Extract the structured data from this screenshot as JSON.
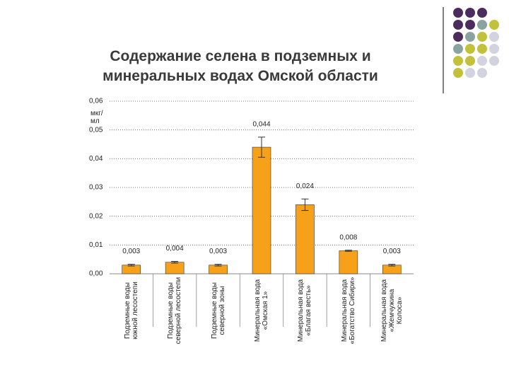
{
  "chart_data": {
    "type": "bar",
    "title": "Содержание селена в подземных и минеральных водах Омской области",
    "y_label": "мкг/мл",
    "categories": [
      "Подземные воды южной лесостепи",
      "Подземные воды северной лесостепи",
      "Подземные воды северной зоны",
      "Минеральная вода «Омская 1»",
      "Минеральная вода «Благая весть»",
      "Минеральная вода «Богатство Сибири»",
      "Минеральная вода «Жемчужина Колоса»"
    ],
    "values": [
      0.003,
      0.004,
      0.003,
      0.044,
      0.024,
      0.008,
      0.003
    ],
    "value_labels": [
      "0,003",
      "0,004",
      "0,003",
      "0,044",
      "0,024",
      "0,008",
      "0,003"
    ],
    "errors": [
      0.0003,
      0.0003,
      0.0003,
      0.0035,
      0.002,
      0.0002,
      0.0003
    ],
    "color": "#f7a11a",
    "ylim": [
      0,
      0.06
    ],
    "yticks": [
      {
        "value": 0,
        "label": "0,00"
      },
      {
        "value": 0.01,
        "label": "0,01"
      },
      {
        "value": 0.02,
        "label": "0,02"
      },
      {
        "value": 0.03,
        "label": "0,03"
      },
      {
        "value": 0.04,
        "label": "0,04"
      },
      {
        "value": 0.05,
        "label": "0,05"
      },
      {
        "value": 0.06,
        "label": "0,06"
      }
    ],
    "grid": true
  }
}
